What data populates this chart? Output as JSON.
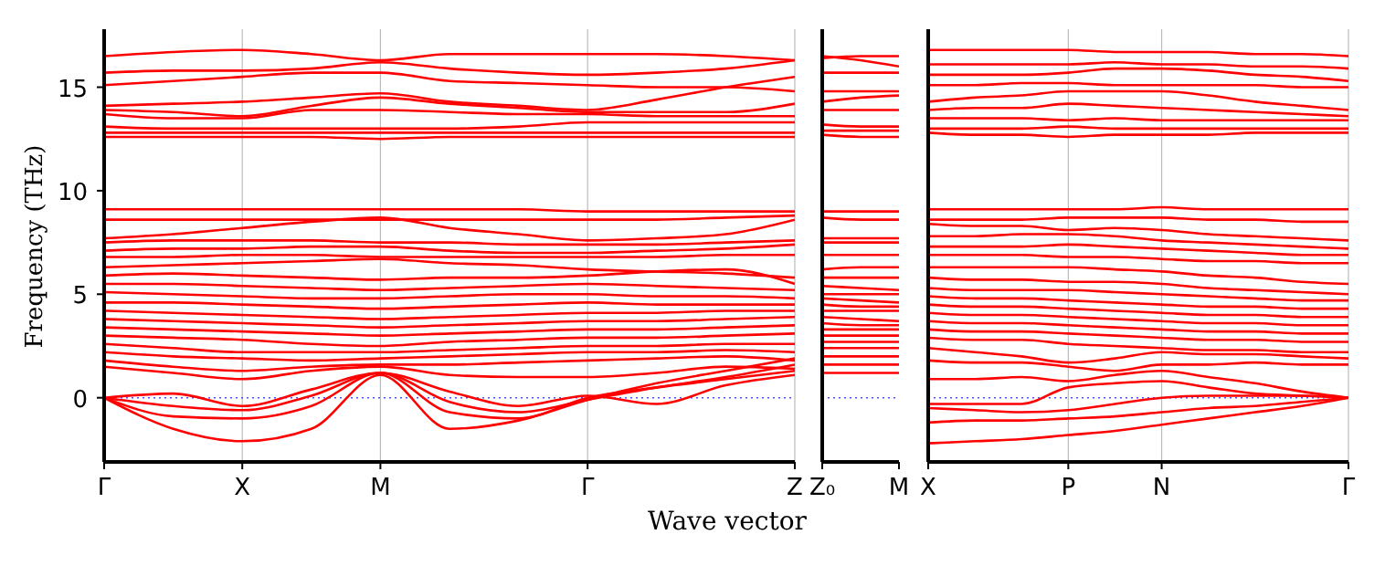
{
  "chart_data": [
    {
      "type": "line",
      "ylabel": "Frequency (THz)",
      "xlabel": "Wave vector",
      "ylim": [
        -3.1,
        17.8
      ],
      "yticks": [
        0,
        5,
        10,
        15
      ],
      "categories": [
        "Γ",
        null,
        "X",
        null,
        "M",
        null,
        null,
        "Γ",
        null,
        null,
        "Z"
      ],
      "grid": "x",
      "marker": "none",
      "line_style": "solid",
      "ref_lines": [
        {
          "axis": "y",
          "value": 0,
          "color": "#4a4aff",
          "line_style": "dotted"
        }
      ],
      "series": [
        {
          "color": "#ff0000",
          "values": [
            16.5,
            16.7,
            16.8,
            16.6,
            16.3,
            16.6,
            16.6,
            16.6,
            16.6,
            16.5,
            16.3
          ]
        },
        {
          "color": "#ff0000",
          "values": [
            15.7,
            15.8,
            15.8,
            15.9,
            16.2,
            15.9,
            15.7,
            15.6,
            15.7,
            15.9,
            16.3
          ]
        },
        {
          "color": "#ff0000",
          "values": [
            15.1,
            15.3,
            15.5,
            15.7,
            15.7,
            15.3,
            15.2,
            15.1,
            15.0,
            15.0,
            14.8
          ]
        },
        {
          "color": "#ff0000",
          "values": [
            14.1,
            14.2,
            14.3,
            14.5,
            14.7,
            14.3,
            14.1,
            13.9,
            14.4,
            15.0,
            15.5
          ]
        },
        {
          "color": "#ff0000",
          "values": [
            13.9,
            13.8,
            13.6,
            14.1,
            14.5,
            14.2,
            14.0,
            13.8,
            13.8,
            13.8,
            14.2
          ]
        },
        {
          "color": "#ff0000",
          "values": [
            13.7,
            13.5,
            13.5,
            13.9,
            13.9,
            13.8,
            13.7,
            13.7,
            13.6,
            13.6,
            13.6
          ]
        },
        {
          "color": "#ff0000",
          "values": [
            13.1,
            13.0,
            13.0,
            13.0,
            13.0,
            13.0,
            13.1,
            13.3,
            13.3,
            13.3,
            13.3
          ]
        },
        {
          "color": "#ff0000",
          "values": [
            12.8,
            12.8,
            12.8,
            12.8,
            12.8,
            12.8,
            12.8,
            12.8,
            12.8,
            12.8,
            12.8
          ]
        },
        {
          "color": "#ff0000",
          "values": [
            12.6,
            12.6,
            12.6,
            12.6,
            12.5,
            12.6,
            12.6,
            12.6,
            12.6,
            12.6,
            12.6
          ]
        },
        {
          "color": "#ff0000",
          "values": [
            9.1,
            9.1,
            9.1,
            9.1,
            9.1,
            9.1,
            9.1,
            9.0,
            9.0,
            9.0,
            9.0
          ]
        },
        {
          "color": "#ff0000",
          "values": [
            8.6,
            8.6,
            8.6,
            8.6,
            8.6,
            8.6,
            8.6,
            8.6,
            8.6,
            8.7,
            8.8
          ]
        },
        {
          "color": "#ff0000",
          "values": [
            7.7,
            7.9,
            8.2,
            8.5,
            8.7,
            8.2,
            7.9,
            7.6,
            7.7,
            7.9,
            8.6
          ]
        },
        {
          "color": "#ff0000",
          "values": [
            7.5,
            7.6,
            7.6,
            7.6,
            7.5,
            7.5,
            7.4,
            7.4,
            7.4,
            7.5,
            7.6
          ]
        },
        {
          "color": "#ff0000",
          "values": [
            7.1,
            7.2,
            7.2,
            7.3,
            7.3,
            7.1,
            7.0,
            7.0,
            7.1,
            7.2,
            7.4
          ]
        },
        {
          "color": "#ff0000",
          "values": [
            6.8,
            6.8,
            6.9,
            6.9,
            6.8,
            6.8,
            6.8,
            6.8,
            6.8,
            6.9,
            6.9
          ]
        },
        {
          "color": "#ff0000",
          "values": [
            6.3,
            6.4,
            6.5,
            6.6,
            6.7,
            6.5,
            6.4,
            6.2,
            6.1,
            6.0,
            5.8
          ]
        },
        {
          "color": "#ff0000",
          "values": [
            5.9,
            6.0,
            5.9,
            5.8,
            5.7,
            5.8,
            5.8,
            5.9,
            6.1,
            6.2,
            5.5
          ]
        },
        {
          "color": "#ff0000",
          "values": [
            5.5,
            5.5,
            5.4,
            5.3,
            5.2,
            5.3,
            5.4,
            5.5,
            5.4,
            5.3,
            5.2
          ]
        },
        {
          "color": "#ff0000",
          "values": [
            5.1,
            5.0,
            4.9,
            4.8,
            4.8,
            4.9,
            5.0,
            5.0,
            4.9,
            4.9,
            4.8
          ]
        },
        {
          "color": "#ff0000",
          "values": [
            4.6,
            4.6,
            4.5,
            4.4,
            4.3,
            4.4,
            4.5,
            4.6,
            4.5,
            4.5,
            4.5
          ]
        },
        {
          "color": "#ff0000",
          "values": [
            4.2,
            4.1,
            4.0,
            3.9,
            3.8,
            3.9,
            4.0,
            4.1,
            4.1,
            4.2,
            4.2
          ]
        },
        {
          "color": "#ff0000",
          "values": [
            3.8,
            3.7,
            3.6,
            3.5,
            3.4,
            3.5,
            3.6,
            3.7,
            3.7,
            3.8,
            3.9
          ]
        },
        {
          "color": "#ff0000",
          "values": [
            3.4,
            3.3,
            3.2,
            3.1,
            3.0,
            3.1,
            3.2,
            3.3,
            3.3,
            3.4,
            3.5
          ]
        },
        {
          "color": "#ff0000",
          "values": [
            3.0,
            2.9,
            2.8,
            2.6,
            2.5,
            2.7,
            2.8,
            2.9,
            2.9,
            3.0,
            3.1
          ]
        },
        {
          "color": "#ff0000",
          "values": [
            2.6,
            2.4,
            2.2,
            2.2,
            2.2,
            2.3,
            2.4,
            2.5,
            2.5,
            2.6,
            2.6
          ]
        },
        {
          "color": "#ff0000",
          "values": [
            2.2,
            2.0,
            1.9,
            1.8,
            1.9,
            2.0,
            2.1,
            2.2,
            2.2,
            2.3,
            2.2
          ]
        },
        {
          "color": "#ff0000",
          "values": [
            1.8,
            1.5,
            1.3,
            1.5,
            1.6,
            1.6,
            1.7,
            1.8,
            1.9,
            2.0,
            1.8
          ]
        },
        {
          "color": "#ff0000",
          "values": [
            1.5,
            1.2,
            0.9,
            1.3,
            1.5,
            1.1,
            1.0,
            1.0,
            1.2,
            1.5,
            1.4
          ]
        },
        {
          "color": "#ff0000",
          "values": [
            0,
            0.2,
            -0.4,
            0.4,
            1.2,
            0.3,
            -0.4,
            0.1,
            -0.3,
            0.6,
            1.1
          ]
        },
        {
          "color": "#ff0000",
          "values": [
            0,
            -0.4,
            -0.6,
            0.1,
            1.2,
            -0.2,
            -0.7,
            -0.1,
            0.5,
            1.0,
            1.6
          ]
        },
        {
          "color": "#ff0000",
          "values": [
            0,
            -0.9,
            -1.0,
            -0.4,
            1.2,
            -0.7,
            -1.0,
            0,
            0.5,
            0.9,
            1.3
          ]
        },
        {
          "color": "#ff0000",
          "values": [
            0,
            -1.5,
            -2.1,
            -1.5,
            1.1,
            -1.5,
            -1.1,
            -0.1,
            0.7,
            1.3,
            1.9
          ]
        }
      ]
    },
    {
      "type": "line",
      "ylim": [
        -3.1,
        17.8
      ],
      "yticks": [
        0,
        5,
        10,
        15
      ],
      "categories": [
        "Z₀",
        null,
        "M"
      ],
      "tick_labels": "x",
      "marker": "none",
      "line_style": "solid",
      "ref_lines": [
        {
          "axis": "y",
          "value": 0,
          "color": "#4a4aff",
          "line_style": "dotted"
        }
      ],
      "series": [
        {
          "color": "#ff0000",
          "values": [
            16.5,
            16.3,
            16.0
          ]
        },
        {
          "color": "#ff0000",
          "values": [
            16.4,
            16.5,
            16.5
          ]
        },
        {
          "color": "#ff0000",
          "values": [
            15.7,
            15.7,
            15.7
          ]
        },
        {
          "color": "#ff0000",
          "values": [
            14.8,
            14.8,
            14.8
          ]
        },
        {
          "color": "#ff0000",
          "values": [
            14.3,
            14.5,
            14.6
          ]
        },
        {
          "color": "#ff0000",
          "values": [
            13.9,
            13.9,
            13.9
          ]
        },
        {
          "color": "#ff0000",
          "values": [
            13.2,
            13.1,
            13.1
          ]
        },
        {
          "color": "#ff0000",
          "values": [
            12.9,
            12.9,
            12.9
          ]
        },
        {
          "color": "#ff0000",
          "values": [
            12.7,
            12.6,
            12.6
          ]
        },
        {
          "color": "#ff0000",
          "values": [
            9.0,
            9.0,
            9.0
          ]
        },
        {
          "color": "#ff0000",
          "values": [
            8.7,
            8.6,
            8.6
          ]
        },
        {
          "color": "#ff0000",
          "values": [
            7.7,
            7.7,
            7.7
          ]
        },
        {
          "color": "#ff0000",
          "values": [
            7.5,
            7.5,
            7.5
          ]
        },
        {
          "color": "#ff0000",
          "values": [
            6.9,
            6.9,
            6.9
          ]
        },
        {
          "color": "#ff0000",
          "values": [
            6.2,
            6.3,
            6.3
          ]
        },
        {
          "color": "#ff0000",
          "values": [
            5.8,
            5.8,
            5.8
          ]
        },
        {
          "color": "#ff0000",
          "values": [
            5.4,
            5.3,
            5.2
          ]
        },
        {
          "color": "#ff0000",
          "values": [
            5.0,
            5.0,
            5.0
          ]
        },
        {
          "color": "#ff0000",
          "values": [
            4.8,
            4.7,
            4.6
          ]
        },
        {
          "color": "#ff0000",
          "values": [
            4.5,
            4.4,
            4.4
          ]
        },
        {
          "color": "#ff0000",
          "values": [
            4.2,
            4.2,
            4.2
          ]
        },
        {
          "color": "#ff0000",
          "values": [
            3.9,
            3.8,
            3.7
          ]
        },
        {
          "color": "#ff0000",
          "values": [
            3.6,
            3.5,
            3.5
          ]
        },
        {
          "color": "#ff0000",
          "values": [
            3.3,
            3.3,
            3.3
          ]
        },
        {
          "color": "#ff0000",
          "values": [
            3.0,
            3.0,
            3.0
          ]
        },
        {
          "color": "#ff0000",
          "values": [
            2.7,
            2.7,
            2.7
          ]
        },
        {
          "color": "#ff0000",
          "values": [
            2.4,
            2.4,
            2.4
          ]
        },
        {
          "color": "#ff0000",
          "values": [
            2.0,
            2.0,
            2.0
          ]
        },
        {
          "color": "#ff0000",
          "values": [
            1.6,
            1.6,
            1.6
          ]
        },
        {
          "color": "#ff0000",
          "values": [
            1.2,
            1.2,
            1.2
          ]
        }
      ]
    },
    {
      "type": "line",
      "ylim": [
        -3.1,
        17.8
      ],
      "yticks": [
        0,
        5,
        10,
        15
      ],
      "categories": [
        "X",
        null,
        null,
        "P",
        null,
        "N",
        null,
        null,
        null,
        "Γ"
      ],
      "tick_labels": "x",
      "grid": "x",
      "marker": "none",
      "line_style": "solid",
      "ref_lines": [
        {
          "axis": "y",
          "value": 0,
          "color": "#4a4aff",
          "line_style": "dotted"
        }
      ],
      "series": [
        {
          "color": "#ff0000",
          "values": [
            16.8,
            16.8,
            16.8,
            16.8,
            16.7,
            16.7,
            16.7,
            16.6,
            16.6,
            16.5
          ]
        },
        {
          "color": "#ff0000",
          "values": [
            16.1,
            16.1,
            16.1,
            16.1,
            16.2,
            16.1,
            16.1,
            16.0,
            16.0,
            15.9
          ]
        },
        {
          "color": "#ff0000",
          "values": [
            15.6,
            15.6,
            15.6,
            15.7,
            15.9,
            15.9,
            15.8,
            15.6,
            15.5,
            15.3
          ]
        },
        {
          "color": "#ff0000",
          "values": [
            15.1,
            15.1,
            15.2,
            15.2,
            15.1,
            15.1,
            15.1,
            15.1,
            15.0,
            15.0
          ]
        },
        {
          "color": "#ff0000",
          "values": [
            14.3,
            14.5,
            14.6,
            14.8,
            14.8,
            14.8,
            14.6,
            14.3,
            14.1,
            13.9
          ]
        },
        {
          "color": "#ff0000",
          "values": [
            13.9,
            14.0,
            14.0,
            14.2,
            14.1,
            14.0,
            13.9,
            13.8,
            13.7,
            13.6
          ]
        },
        {
          "color": "#ff0000",
          "values": [
            13.5,
            13.5,
            13.5,
            13.4,
            13.5,
            13.4,
            13.4,
            13.4,
            13.4,
            13.4
          ]
        },
        {
          "color": "#ff0000",
          "values": [
            13.0,
            13.0,
            13.0,
            13.1,
            13.0,
            13.0,
            13.0,
            13.0,
            13.0,
            13.0
          ]
        },
        {
          "color": "#ff0000",
          "values": [
            12.8,
            12.7,
            12.7,
            12.6,
            12.7,
            12.7,
            12.7,
            12.8,
            12.8,
            12.8
          ]
        },
        {
          "color": "#ff0000",
          "values": [
            9.1,
            9.1,
            9.1,
            9.1,
            9.1,
            9.2,
            9.1,
            9.1,
            9.1,
            9.1
          ]
        },
        {
          "color": "#ff0000",
          "values": [
            8.6,
            8.6,
            8.6,
            8.7,
            8.7,
            8.7,
            8.6,
            8.6,
            8.5,
            8.5
          ]
        },
        {
          "color": "#ff0000",
          "values": [
            8.4,
            8.3,
            8.3,
            8.1,
            8.2,
            8.1,
            7.9,
            7.8,
            7.7,
            7.6
          ]
        },
        {
          "color": "#ff0000",
          "values": [
            7.8,
            7.8,
            7.9,
            7.9,
            7.8,
            7.6,
            7.5,
            7.4,
            7.3,
            7.2
          ]
        },
        {
          "color": "#ff0000",
          "values": [
            7.3,
            7.3,
            7.3,
            7.4,
            7.3,
            7.2,
            7.1,
            7.0,
            6.9,
            6.9
          ]
        },
        {
          "color": "#ff0000",
          "values": [
            6.9,
            6.9,
            6.9,
            6.8,
            6.8,
            6.7,
            6.6,
            6.6,
            6.5,
            6.5
          ]
        },
        {
          "color": "#ff0000",
          "values": [
            6.3,
            6.3,
            6.3,
            6.3,
            6.2,
            6.1,
            5.9,
            5.8,
            5.6,
            5.5
          ]
        },
        {
          "color": "#ff0000",
          "values": [
            5.8,
            5.7,
            5.7,
            5.6,
            5.6,
            5.5,
            5.3,
            5.2,
            5.1,
            5.0
          ]
        },
        {
          "color": "#ff0000",
          "values": [
            5.3,
            5.2,
            5.2,
            5.2,
            5.1,
            5.0,
            4.9,
            4.8,
            4.7,
            4.7
          ]
        },
        {
          "color": "#ff0000",
          "values": [
            4.9,
            4.8,
            4.8,
            4.7,
            4.6,
            4.5,
            4.4,
            4.4,
            4.3,
            4.3
          ]
        },
        {
          "color": "#ff0000",
          "values": [
            4.5,
            4.4,
            4.4,
            4.3,
            4.2,
            4.1,
            4.0,
            4.0,
            3.9,
            3.9
          ]
        },
        {
          "color": "#ff0000",
          "values": [
            4.1,
            4.0,
            4.0,
            3.9,
            3.8,
            3.7,
            3.6,
            3.6,
            3.5,
            3.5
          ]
        },
        {
          "color": "#ff0000",
          "values": [
            3.7,
            3.6,
            3.6,
            3.5,
            3.4,
            3.3,
            3.2,
            3.2,
            3.1,
            3.1
          ]
        },
        {
          "color": "#ff0000",
          "values": [
            3.3,
            3.2,
            3.2,
            3.1,
            3.0,
            2.9,
            2.8,
            2.8,
            2.7,
            2.7
          ]
        },
        {
          "color": "#ff0000",
          "values": [
            2.9,
            2.8,
            2.8,
            2.6,
            2.5,
            2.4,
            2.3,
            2.3,
            2.2,
            2.2
          ]
        },
        {
          "color": "#ff0000",
          "values": [
            2.4,
            2.2,
            2.0,
            1.7,
            1.9,
            2.2,
            2.1,
            2.1,
            2.0,
            1.9
          ]
        },
        {
          "color": "#ff0000",
          "values": [
            1.8,
            1.7,
            1.7,
            1.5,
            1.3,
            1.6,
            1.6,
            1.7,
            1.6,
            1.6
          ]
        },
        {
          "color": "#ff0000",
          "values": [
            0.9,
            0.9,
            1.0,
            0.8,
            1.1,
            1.3,
            1.0,
            0.7,
            0.3,
            0
          ]
        },
        {
          "color": "#ff0000",
          "values": [
            -0.3,
            -0.3,
            -0.3,
            0.5,
            0.7,
            0.8,
            0.5,
            0.2,
            0.1,
            0
          ]
        },
        {
          "color": "#ff0000",
          "values": [
            -0.5,
            -0.6,
            -0.7,
            -0.6,
            -0.3,
            0.0,
            0.1,
            0.1,
            0.1,
            0
          ]
        },
        {
          "color": "#ff0000",
          "values": [
            -1.2,
            -1.1,
            -1.1,
            -1.0,
            -0.9,
            -0.7,
            -0.5,
            -0.4,
            -0.2,
            0
          ]
        },
        {
          "color": "#ff0000",
          "values": [
            -2.2,
            -2.1,
            -2.0,
            -1.8,
            -1.6,
            -1.3,
            -1.0,
            -0.7,
            -0.4,
            0
          ]
        }
      ]
    }
  ]
}
